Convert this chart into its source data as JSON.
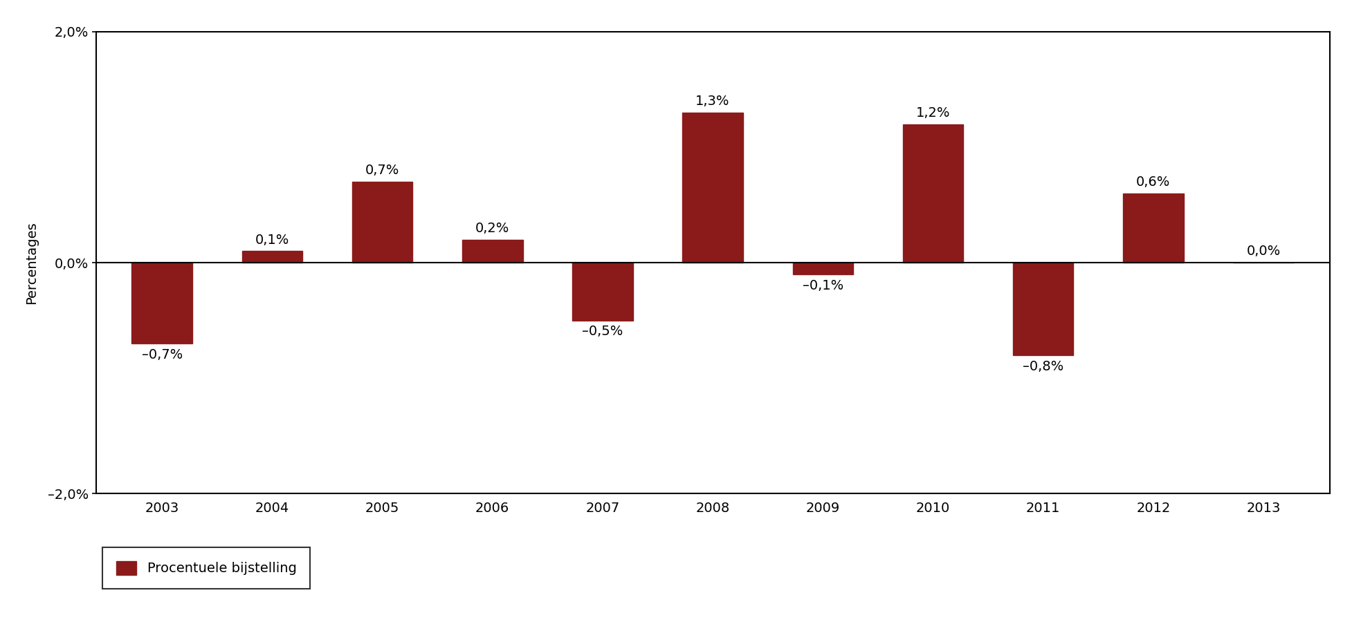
{
  "categories": [
    "2003",
    "2004",
    "2005",
    "2006",
    "2007",
    "2008",
    "2009",
    "2010",
    "2011",
    "2012",
    "2013"
  ],
  "values": [
    -0.7,
    0.1,
    0.7,
    0.2,
    -0.5,
    1.3,
    -0.1,
    1.2,
    -0.8,
    0.6,
    0.0
  ],
  "labels": [
    "–0,7%",
    "0,1%",
    "0,7%",
    "0,2%",
    "–0,5%",
    "1,3%",
    "–0,1%",
    "1,2%",
    "–0,8%",
    "0,6%",
    "0,0%"
  ],
  "bar_color": "#8B1A1A",
  "ylabel": "Percentages",
  "ylim": [
    -2.0,
    2.0
  ],
  "yticks": [
    -2.0,
    0.0,
    2.0
  ],
  "ytick_labels": [
    "–2,0%",
    "0,0%",
    "2,0%"
  ],
  "legend_label": "Procentuele bijstelling",
  "background_color": "#ffffff",
  "label_fontsize": 14,
  "tick_fontsize": 14,
  "ylabel_fontsize": 14,
  "legend_fontsize": 14,
  "bar_width": 0.55
}
